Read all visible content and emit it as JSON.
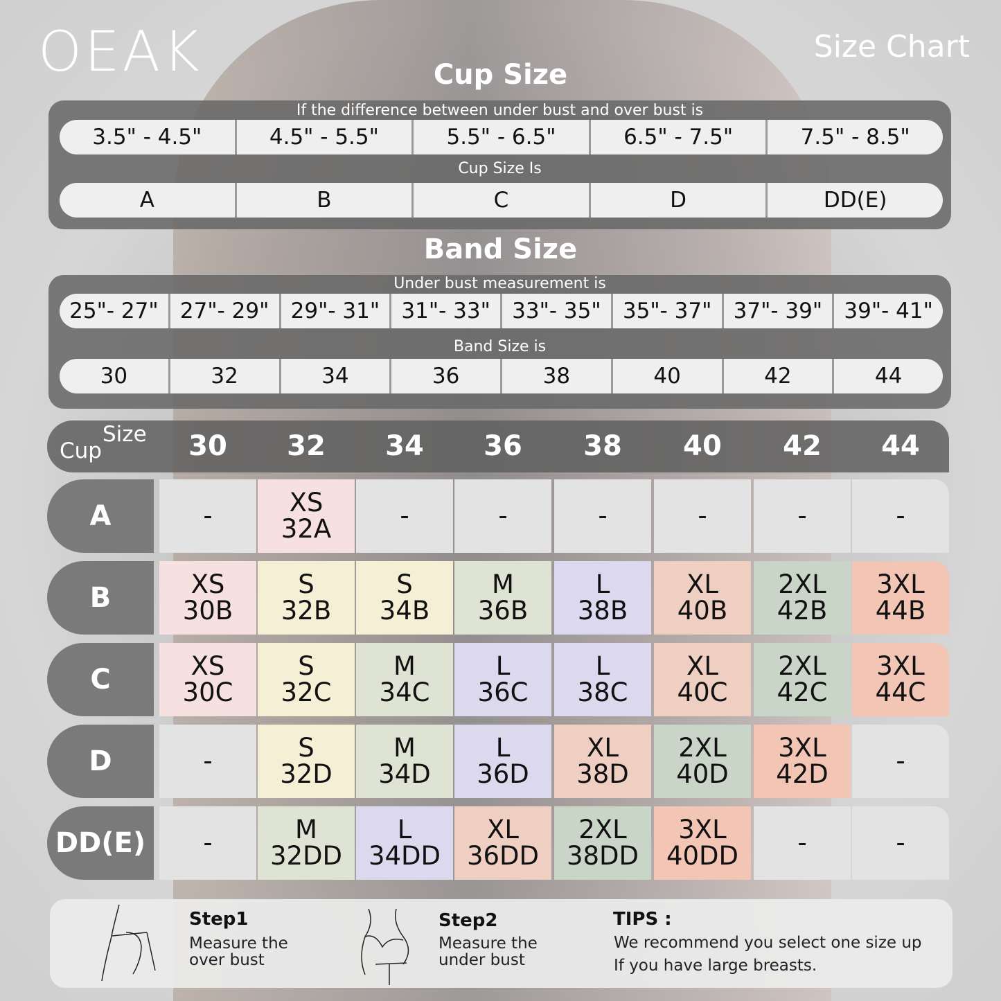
{
  "brand": "OEAK",
  "chart_label": "Size Chart",
  "cup_section": {
    "title": "Cup Size",
    "subtitle": "If the  difference between under bust and over bust is",
    "differences": [
      "3.5\" -  4.5\"",
      "4.5\" -  5.5\"",
      "5.5\" -  6.5\"",
      "6.5\" -  7.5\"",
      "7.5\" -  8.5\""
    ],
    "result_label": "Cup Size Is",
    "cups": [
      "A",
      "B",
      "C",
      "D",
      "DD(E)"
    ]
  },
  "band_section": {
    "title": "Band Size",
    "subtitle": "Under bust measurement is",
    "measurements": [
      "25\"- 27\"",
      "27\"- 29\"",
      "29\"- 31\"",
      "31\"- 33\"",
      "33\"- 35\"",
      "35\"- 37\"",
      "37\"- 39\"",
      "39\"- 41\""
    ],
    "result_label": "Band Size is",
    "bands": [
      "30",
      "32",
      "34",
      "36",
      "38",
      "40",
      "42",
      "44"
    ]
  },
  "table": {
    "corner_size": "Size",
    "corner_cup": "Cup",
    "columns": [
      "30",
      "32",
      "34",
      "36",
      "38",
      "40",
      "42",
      "44"
    ],
    "rows": [
      {
        "cup": "A",
        "cells": [
          "-",
          "XS 32A",
          "-",
          "-",
          "-",
          "-",
          "-",
          "-"
        ]
      },
      {
        "cup": "B",
        "cells": [
          "XS 30B",
          "S 32B",
          "S 34B",
          "M 36B",
          "L 38B",
          "XL 40B",
          "2XL 42B",
          "3XL 44B"
        ]
      },
      {
        "cup": "C",
        "cells": [
          "XS 30C",
          "S 32C",
          "M 34C",
          "L 36C",
          "L 38C",
          "XL 40C",
          "2XL 42C",
          "3XL 44C"
        ]
      },
      {
        "cup": "D",
        "cells": [
          "-",
          "S 32D",
          "M 34D",
          "L 36D",
          "XL 38D",
          "2XL 40D",
          "3XL 42D",
          "-"
        ]
      },
      {
        "cup": "DD(E)",
        "cells": [
          "-",
          "M 32DD",
          "L 34DD",
          "XL 36DD",
          "2XL 38DD",
          "3XL 40DD",
          "-",
          "-"
        ]
      }
    ]
  },
  "size_colors": {
    "XS": "#f6e0e0",
    "S": "#f5efd6",
    "M": "#dfe3d3",
    "L": "#dcd8ee",
    "XL": "#f0cfc3",
    "2XL": "#c9d5c7",
    "3XL": "#f2c5b5",
    "-": "#e3e3e3"
  },
  "footer": {
    "step1_title": "Step1",
    "step1_line1": "Measure the",
    "step1_line2": "over bust",
    "step2_title": "Step2",
    "step2_line1": "Measure the",
    "step2_line2": "under bust",
    "tips_title": "TIPS :",
    "tips_line1": "We recommend you select one size up",
    "tips_line2": "If you have large breasts."
  }
}
